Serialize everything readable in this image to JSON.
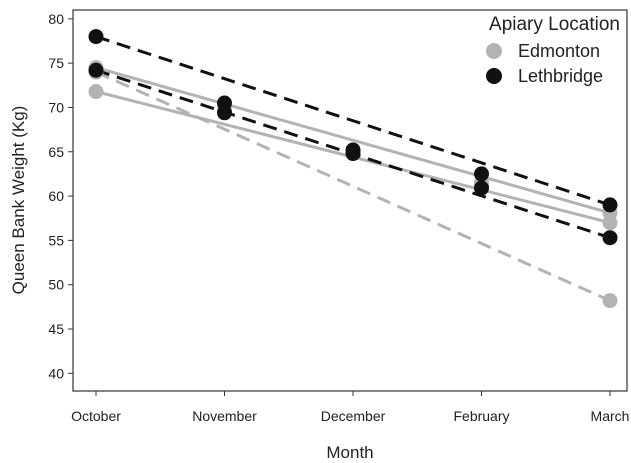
{
  "chart_data": {
    "type": "line",
    "xlabel": "Month",
    "ylabel": "Queen Bank Weight (Kg)",
    "categories": [
      "October",
      "November",
      "December",
      "February",
      "March"
    ],
    "ylim": [
      38,
      81
    ],
    "yticks": [
      40,
      45,
      50,
      55,
      60,
      65,
      70,
      75,
      80
    ],
    "grid": false,
    "legend": {
      "title": "Apiary Location",
      "placement": "top-right",
      "entries": [
        {
          "label": "Edmonton",
          "color": "#b3b3b3"
        },
        {
          "label": "Lethbridge",
          "color": "#111111"
        }
      ]
    },
    "series": [
      {
        "group": "Edmonton",
        "color": "#b3b3b3",
        "dash": "dashed",
        "values": [
          74.0,
          null,
          65.0,
          61.5,
          48.2
        ]
      },
      {
        "group": "Edmonton",
        "color": "#b3b3b3",
        "dash": "solid",
        "values": [
          74.5,
          70.0,
          65.2,
          61.3,
          58.1
        ]
      },
      {
        "group": "Edmonton",
        "color": "#b3b3b3",
        "dash": "solid",
        "values": [
          71.8,
          69.6,
          65.0,
          61.1,
          57.0
        ]
      },
      {
        "group": "Lethbridge",
        "color": "#111111",
        "dash": "dashed",
        "values": [
          78.0,
          70.5,
          65.2,
          62.5,
          59.0
        ]
      },
      {
        "group": "Lethbridge",
        "color": "#111111",
        "dash": "dashed",
        "values": [
          74.2,
          69.4,
          64.8,
          60.9,
          55.3
        ]
      }
    ]
  }
}
